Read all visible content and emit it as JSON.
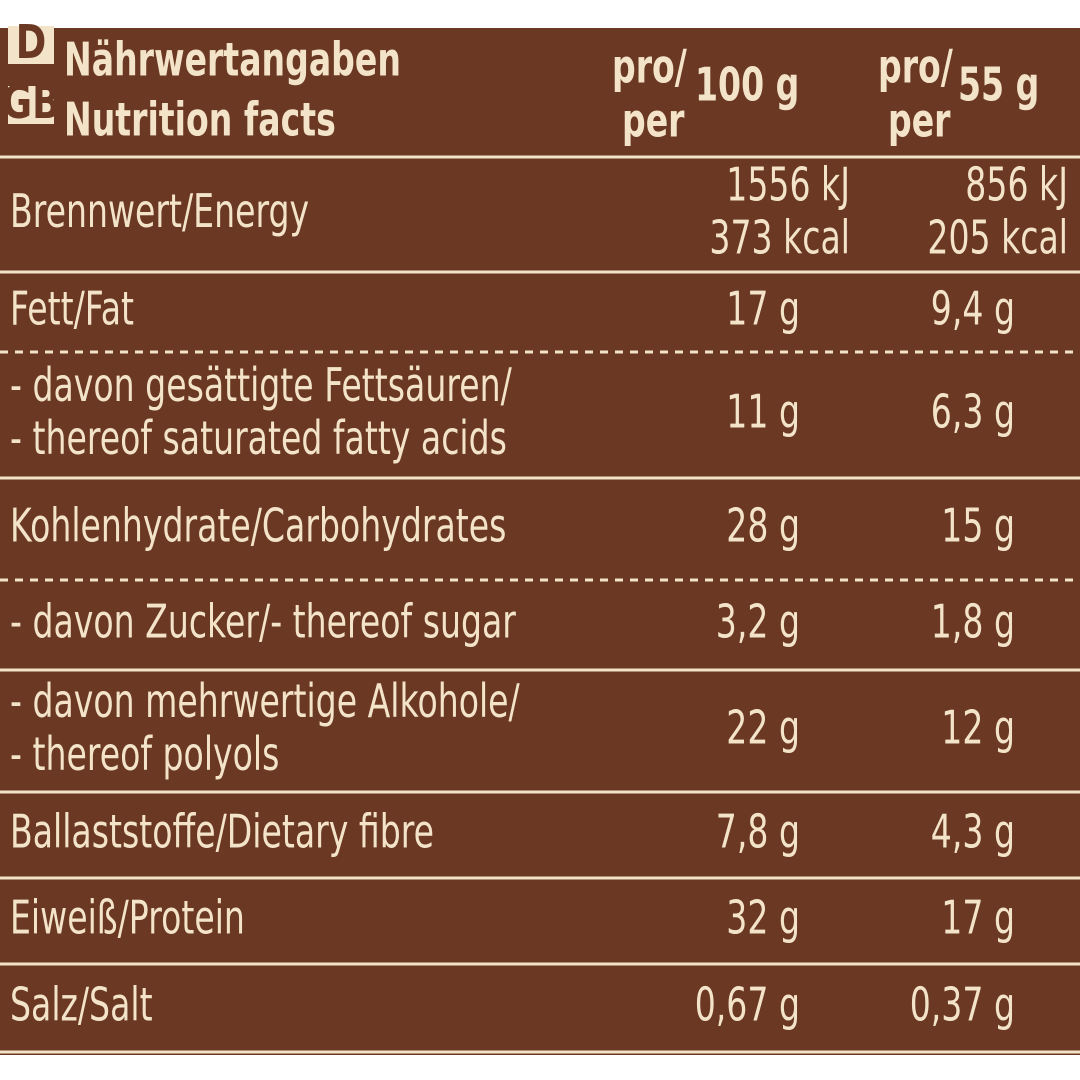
{
  "header": {
    "badges": [
      "D",
      "GB"
    ],
    "title": [
      "Nährwertangaben",
      "Nutrition facts"
    ],
    "columns": [
      {
        "pro": "pro/",
        "per": "per",
        "amount": "100 g"
      },
      {
        "pro": "pro/",
        "per": "per",
        "amount": "55 g"
      }
    ]
  },
  "table": {
    "rows": [
      {
        "label": [
          "Brennwert/Energy"
        ],
        "values": [
          [
            "1556 kJ",
            "373 kcal"
          ],
          [
            "856 kJ",
            "205 kcal"
          ]
        ]
      },
      {
        "label": [
          "Fett/Fat"
        ],
        "values": [
          [
            "17 g"
          ],
          [
            "9,4 g"
          ]
        ]
      },
      {
        "label": [
          "- davon gesättigte Fettsäuren/",
          "- thereof saturated fatty acids"
        ],
        "values": [
          [
            "11 g"
          ],
          [
            "6,3 g"
          ]
        ]
      },
      {
        "label": [
          "Kohlenhydrate/Carbohydrates"
        ],
        "values": [
          [
            "28 g"
          ],
          [
            "15 g"
          ]
        ]
      },
      {
        "label": [
          "- davon Zucker/- thereof sugar"
        ],
        "values": [
          [
            "3,2 g"
          ],
          [
            "1,8 g"
          ]
        ]
      },
      {
        "label": [
          "- davon mehrwertige Alkohole/",
          "- thereof polyols"
        ],
        "values": [
          [
            "22 g"
          ],
          [
            "12 g"
          ]
        ]
      },
      {
        "label": [
          "Ballaststoffe/Dietary fibre"
        ],
        "values": [
          [
            "7,8 g"
          ],
          [
            "4,3 g"
          ]
        ]
      },
      {
        "label": [
          "Eiweiß/Protein"
        ],
        "values": [
          [
            "32 g"
          ],
          [
            "17 g"
          ]
        ]
      },
      {
        "label": [
          "Salz/Salt"
        ],
        "values": [
          [
            "0,67 g"
          ],
          [
            "0,37 g"
          ]
        ]
      }
    ]
  }
}
